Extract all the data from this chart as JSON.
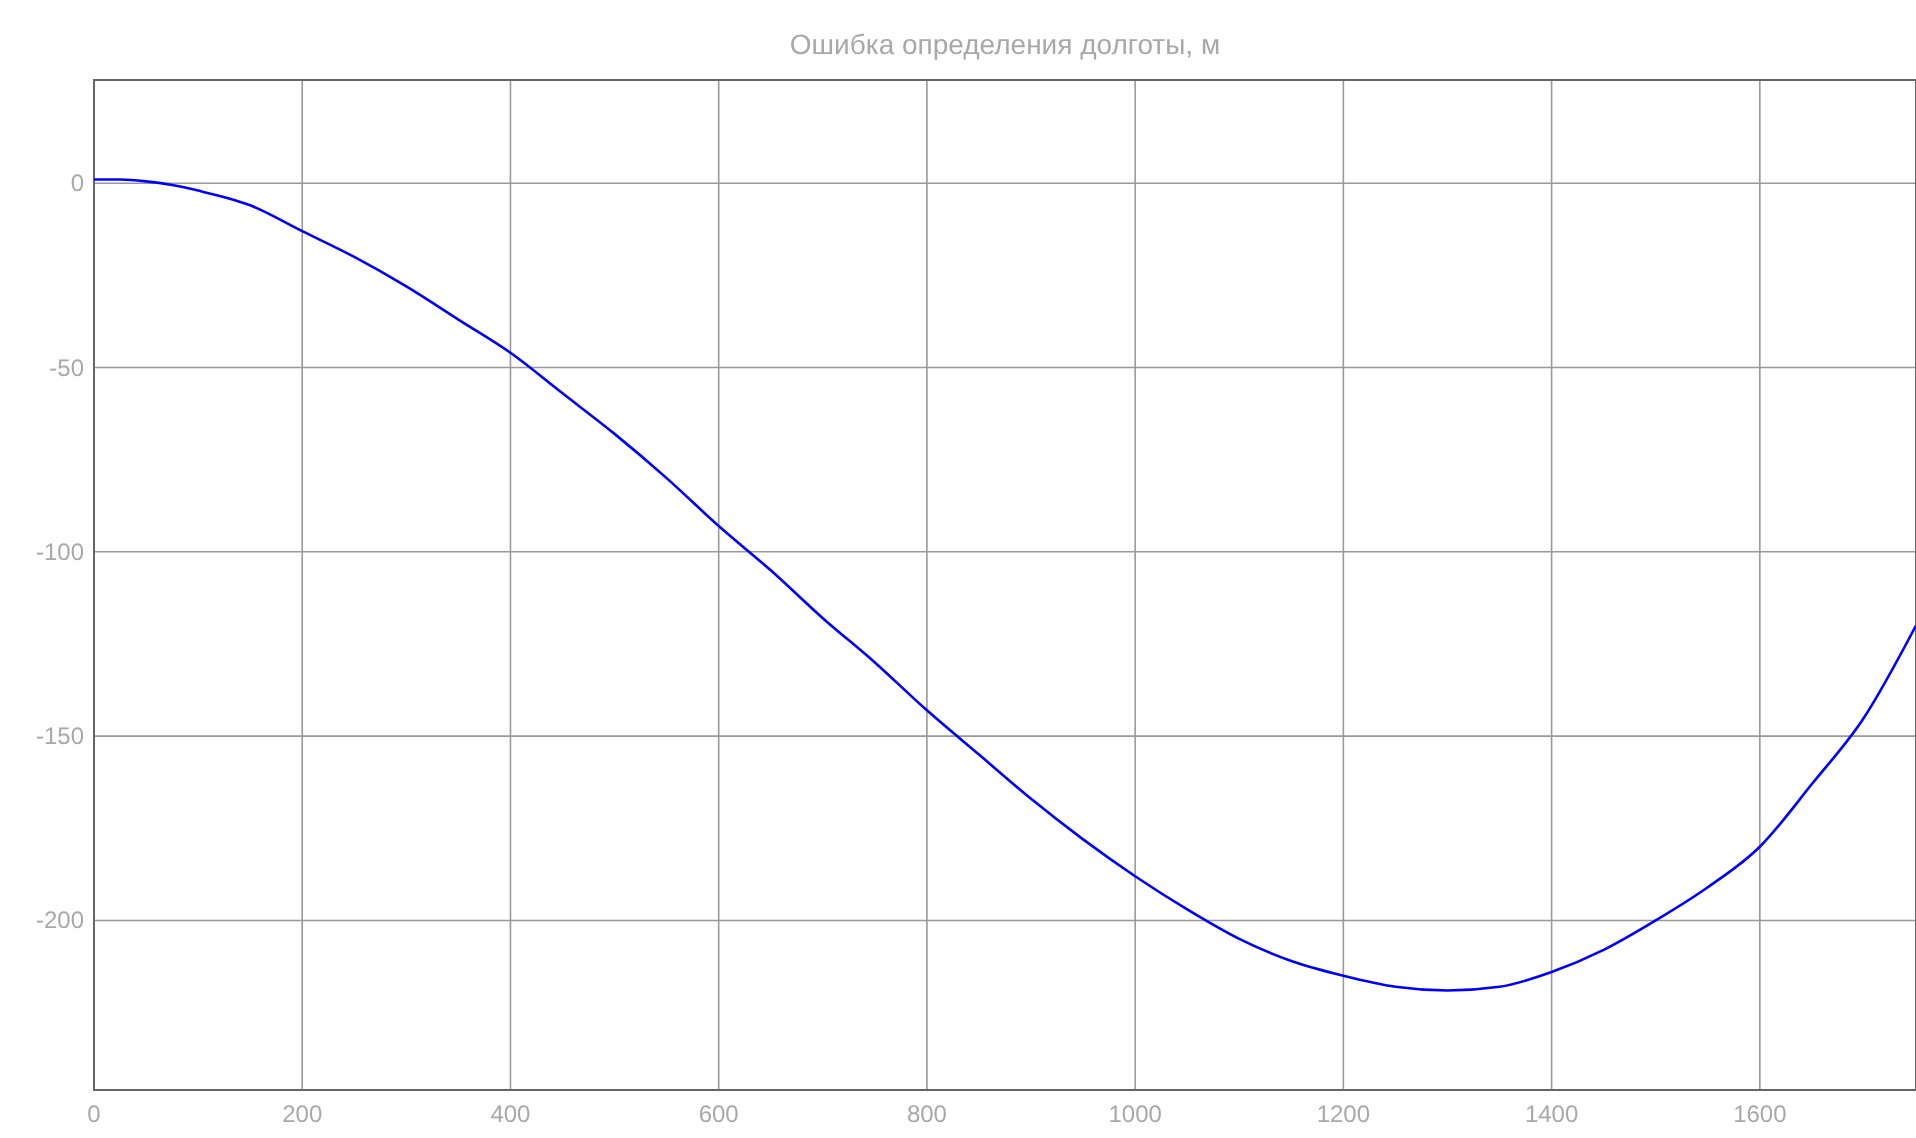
{
  "chart_data": {
    "type": "line",
    "title": "Ошибка определения долготы, м",
    "x": [
      0,
      25,
      50,
      75,
      100,
      150,
      200,
      250,
      300,
      350,
      400,
      450,
      500,
      550,
      600,
      650,
      700,
      750,
      800,
      850,
      900,
      950,
      1000,
      1050,
      1100,
      1150,
      1200,
      1250,
      1300,
      1350,
      1400,
      1450,
      1500,
      1550,
      1600,
      1650,
      1700,
      1750
    ],
    "series": [
      {
        "color": "#0000ff",
        "values": [
          1,
          1,
          0.5,
          -0.5,
          -2,
          -6,
          -13,
          -20,
          -28,
          -37,
          -46,
          -57,
          -68,
          -80,
          -93,
          -105,
          -118,
          -130,
          -143,
          -155,
          -167,
          -178,
          -188,
          -197,
          -205,
          -211,
          -215,
          -218,
          -219,
          -218,
          -214,
          -208,
          -200,
          -191,
          -180,
          -163,
          -145,
          -120
        ]
      }
    ],
    "xlim": [
      0,
      1750
    ],
    "xticks": [
      0,
      200,
      400,
      600,
      800,
      1000,
      1200,
      1400,
      1600
    ],
    "ylim": [
      -246,
      28
    ],
    "yticks": [
      0,
      -50,
      -100,
      -150,
      -200
    ],
    "grid": true,
    "marker": "none",
    "line_style": "solid"
  }
}
